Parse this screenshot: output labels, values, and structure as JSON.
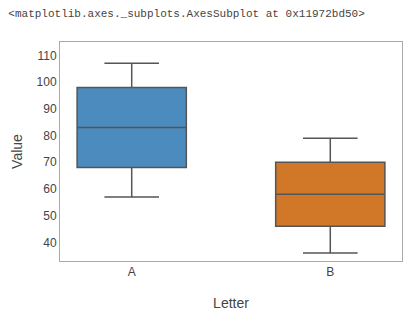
{
  "chart_data": {
    "type": "box",
    "title": "<matplotlib.axes._subplots.AxesSubplot at 0x11972bd50>",
    "xlabel": "Letter",
    "ylabel": "Value",
    "categories": [
      "A",
      "B"
    ],
    "boxes": [
      {
        "whislo": 57,
        "q1": 68,
        "med": 83,
        "q3": 98,
        "whishi": 107
      },
      {
        "whislo": 36,
        "q1": 46,
        "med": 58,
        "q3": 70,
        "whishi": 79
      }
    ],
    "colors": [
      "#4C8BBE",
      "#D07828"
    ],
    "ylim": [
      33,
      115
    ],
    "yticks": [
      40,
      50,
      60,
      70,
      80,
      90,
      100,
      110
    ],
    "grid": false
  }
}
